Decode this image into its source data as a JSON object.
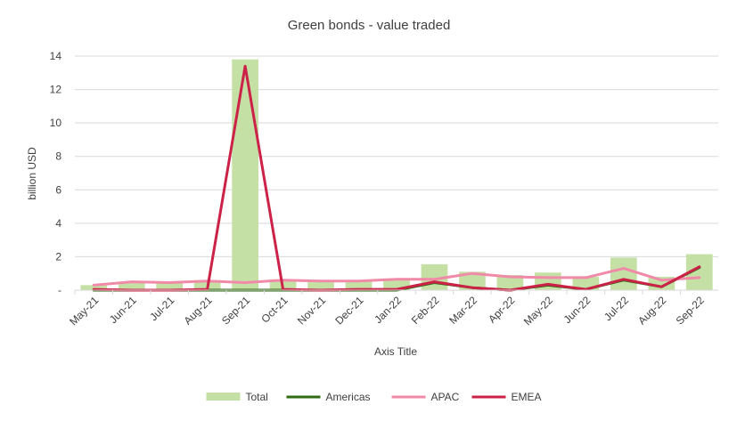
{
  "chart_data": {
    "type": "bar",
    "title": "Green bonds - value traded",
    "xlabel": "Axis Title",
    "ylabel": "billion USD",
    "ylim": [
      0,
      14
    ],
    "yticks": [
      0,
      2,
      4,
      6,
      8,
      10,
      12,
      14
    ],
    "ytick_labels": [
      "-",
      "2",
      "4",
      "6",
      "8",
      "10",
      "12",
      "14"
    ],
    "grid": true,
    "legend_position": "bottom",
    "categories": [
      "May-21",
      "Jun-21",
      "Jul-21",
      "Aug-21",
      "Sep-21",
      "Oct-21",
      "Nov-21",
      "Dec-21",
      "Jan-22",
      "Feb-22",
      "Mar-22",
      "Apr-22",
      "May-22",
      "Jun-22",
      "Jul-22",
      "Aug-22",
      "Sep-22"
    ],
    "series": [
      {
        "name": "Total",
        "kind": "bar",
        "color": "#c5e0a5",
        "values": [
          0.3,
          0.5,
          0.5,
          0.6,
          13.8,
          0.65,
          0.6,
          0.6,
          0.7,
          1.55,
          1.1,
          0.9,
          1.05,
          0.8,
          1.95,
          0.8,
          2.15
        ]
      },
      {
        "name": "Americas",
        "kind": "line",
        "color": "#2e6b12",
        "values": [
          0,
          0,
          0,
          0,
          0,
          0,
          0,
          0,
          0,
          0.45,
          0.15,
          0,
          0.3,
          0.05,
          0.6,
          0.2,
          1.35
        ]
      },
      {
        "name": "APAC",
        "kind": "line",
        "color": "#f08aa8",
        "values": [
          0.3,
          0.5,
          0.45,
          0.55,
          0.45,
          0.6,
          0.55,
          0.55,
          0.65,
          0.65,
          1.0,
          0.8,
          0.75,
          0.75,
          1.3,
          0.6,
          0.75
        ]
      },
      {
        "name": "EMEA",
        "kind": "line",
        "color": "#cc2248",
        "values": [
          0.05,
          0,
          0,
          0.05,
          13.4,
          0.05,
          0,
          0.05,
          0.05,
          0.5,
          0.15,
          0.0,
          0.35,
          0.05,
          0.65,
          0.2,
          1.4
        ]
      }
    ]
  }
}
